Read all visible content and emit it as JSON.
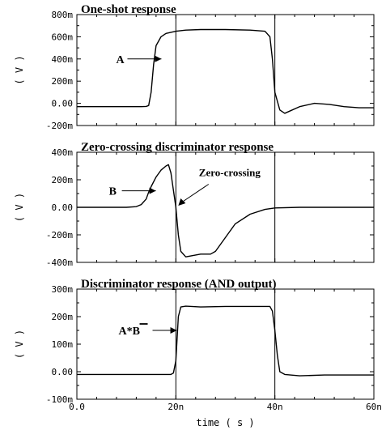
{
  "xaxis": {
    "label": "time  ( s )",
    "ticks": [
      {
        "v": 0,
        "label": "0.0"
      },
      {
        "v": 20,
        "label": "20n"
      },
      {
        "v": 40,
        "label": "40n"
      },
      {
        "v": 60,
        "label": "60n"
      }
    ],
    "range": [
      0,
      60
    ],
    "units": "ns"
  },
  "chart_data": [
    {
      "type": "line",
      "title": "One-shot response",
      "ylabel": "( V )",
      "xlim": [
        0,
        60
      ],
      "ylim": [
        -0.2,
        0.8
      ],
      "yticks": [
        {
          "v": 0.8,
          "label": "800m"
        },
        {
          "v": 0.6,
          "label": "600m"
        },
        {
          "v": 0.4,
          "label": "400m"
        },
        {
          "v": 0.2,
          "label": "200m"
        },
        {
          "v": 0.0,
          "label": "0.00"
        },
        {
          "v": -0.2,
          "label": "-200m"
        }
      ],
      "vlines": [
        20,
        40
      ],
      "annotation": {
        "text": "A",
        "x": 12.5,
        "y": 0.4
      },
      "series": [
        {
          "x": [
            0,
            13,
            14,
            14.5,
            15,
            15.5,
            16,
            17,
            18,
            19,
            20,
            22,
            25,
            30,
            35,
            38,
            39,
            39.5,
            40,
            41,
            42,
            43,
            45,
            48,
            51,
            54,
            57,
            60
          ],
          "y": [
            -0.03,
            -0.03,
            -0.028,
            -0.02,
            0.1,
            0.35,
            0.52,
            0.6,
            0.63,
            0.64,
            0.65,
            0.66,
            0.665,
            0.665,
            0.66,
            0.65,
            0.6,
            0.4,
            0.1,
            -0.06,
            -0.09,
            -0.07,
            -0.03,
            0.0,
            -0.01,
            -0.03,
            -0.04,
            -0.04
          ]
        }
      ]
    },
    {
      "type": "line",
      "title": "Zero-crossing discriminator response",
      "ylabel": "( V )",
      "xlim": [
        0,
        60
      ],
      "ylim": [
        -0.4,
        0.4
      ],
      "yticks": [
        {
          "v": 0.4,
          "label": "400m"
        },
        {
          "v": 0.2,
          "label": "200m"
        },
        {
          "v": 0.0,
          "label": "0.00"
        },
        {
          "v": -0.2,
          "label": "-200m"
        },
        {
          "v": -0.4,
          "label": "-400m"
        }
      ],
      "vlines": [
        20,
        40
      ],
      "annotations": [
        {
          "text": "B",
          "x": 6.8,
          "y": 0.12
        },
        {
          "text": "Zero-crossing",
          "x": 24,
          "y": 0.25
        }
      ],
      "series": [
        {
          "x": [
            0,
            10,
            12,
            13,
            14,
            14.5,
            15,
            16,
            17,
            18,
            18.5,
            19,
            20,
            20.5,
            21,
            22,
            25,
            26,
            27,
            28,
            30,
            32,
            35,
            38,
            40,
            45,
            50,
            55,
            60
          ],
          "y": [
            0.0,
            0.0,
            0.005,
            0.02,
            0.06,
            0.11,
            0.15,
            0.22,
            0.27,
            0.3,
            0.31,
            0.25,
            0.0,
            -0.2,
            -0.32,
            -0.36,
            -0.34,
            -0.34,
            -0.34,
            -0.32,
            -0.22,
            -0.12,
            -0.05,
            -0.015,
            -0.005,
            0.0,
            0.0,
            0.0,
            0.0
          ]
        }
      ]
    },
    {
      "type": "line",
      "title": "Discriminator  response (AND output)",
      "ylabel": "( V )",
      "xlim": [
        0,
        60
      ],
      "ylim": [
        -0.1,
        0.3
      ],
      "yticks": [
        {
          "v": 0.3,
          "label": "300m"
        },
        {
          "v": 0.2,
          "label": "200m"
        },
        {
          "v": 0.1,
          "label": "100m"
        },
        {
          "v": 0.0,
          "label": "0.00"
        },
        {
          "v": -0.1,
          "label": "-100m"
        }
      ],
      "vlines": [
        20,
        40
      ],
      "annotation": {
        "text": "A*B",
        "x": 13,
        "y": 0.15
      },
      "series": [
        {
          "x": [
            0,
            10,
            19,
            19.5,
            20,
            20.5,
            21,
            22,
            25,
            30,
            35,
            39,
            39.5,
            40,
            40.5,
            41,
            42,
            45,
            50,
            55,
            60
          ],
          "y": [
            -0.01,
            -0.01,
            -0.01,
            -0.005,
            0.04,
            0.2,
            0.235,
            0.238,
            0.235,
            0.237,
            0.237,
            0.237,
            0.22,
            0.15,
            0.06,
            0.0,
            -0.01,
            -0.015,
            -0.012,
            -0.012,
            -0.012
          ]
        }
      ]
    }
  ]
}
